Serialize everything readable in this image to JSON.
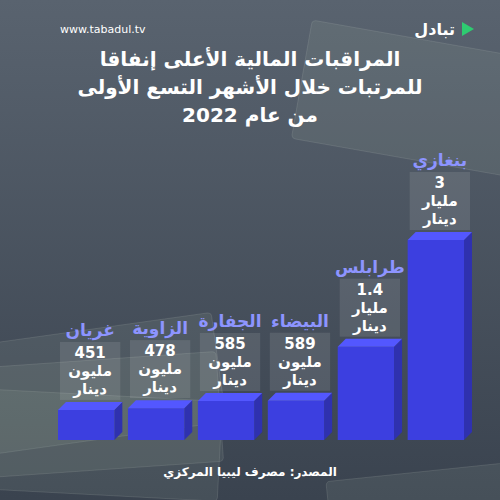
{
  "chart_data": {
    "type": "bar",
    "title": "المراقبات المالية الأعلى إنفاقا للمرتبات خلال الأشهر التسع الأولى من عام 2022",
    "categories": [
      "بنغازي",
      "طرابلس",
      "البيضاء",
      "الجفارة",
      "الزاوية",
      "غريان"
    ],
    "values": [
      3000,
      1400,
      589,
      585,
      478,
      451
    ],
    "value_labels": [
      "3 مليار دينار",
      "1.4 مليار دينار",
      "589 مليون دينار",
      "585 مليون دينار",
      "478 مليون دينار",
      "451 مليون دينار"
    ],
    "color": "#3c3fe0",
    "data_labels": true,
    "tick_labels": "x",
    "source": "المصدر: مصرف ليبيا المركزي",
    "annotations": [
      "www.tabadul.tv",
      "تبادل"
    ]
  }
}
